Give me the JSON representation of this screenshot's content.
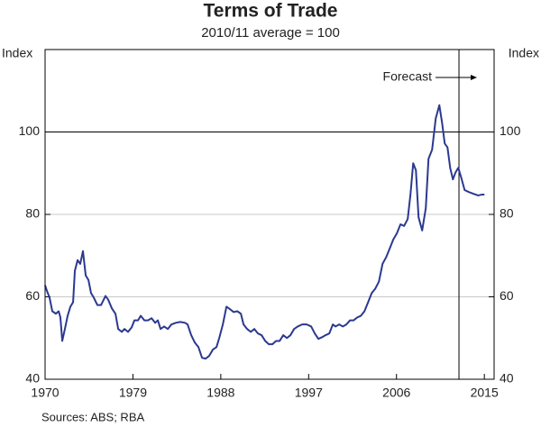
{
  "chart_data": {
    "type": "line",
    "title": "Terms of Trade",
    "subtitle": "2010/11 average = 100",
    "y_label": "Index",
    "y2_label": "Index",
    "source": "Sources: ABS; RBA",
    "annotation": "Forecast",
    "forecast_start": 2012.4,
    "hline": 100,
    "xlim": [
      1970,
      2016
    ],
    "xticks": [
      1970,
      1979,
      1988,
      1997,
      2006,
      2015
    ],
    "ylim": [
      40,
      120
    ],
    "yticks": [
      40,
      60,
      80,
      100
    ],
    "y2lim": [
      40,
      120
    ],
    "y2ticks": [
      40,
      60,
      80,
      100
    ],
    "grid": true,
    "series": [
      {
        "name": "Terms of Trade",
        "color": "#2b3990",
        "x": [
          1970.0,
          1970.18,
          1970.46,
          1970.74,
          1971.11,
          1971.39,
          1971.57,
          1971.76,
          1972.03,
          1972.31,
          1972.59,
          1972.87,
          1973.05,
          1973.33,
          1973.6,
          1973.88,
          1974.16,
          1974.44,
          1974.71,
          1974.99,
          1975.36,
          1975.73,
          1976.19,
          1976.47,
          1976.84,
          1977.21,
          1977.49,
          1977.86,
          1978.13,
          1978.5,
          1978.87,
          1979.15,
          1979.52,
          1979.8,
          1980.17,
          1980.54,
          1980.91,
          1981.28,
          1981.55,
          1981.83,
          1982.2,
          1982.57,
          1982.94,
          1983.4,
          1983.86,
          1984.33,
          1984.6,
          1984.97,
          1985.34,
          1985.71,
          1986.08,
          1986.45,
          1986.82,
          1987.19,
          1987.56,
          1987.84,
          1988.21,
          1988.58,
          1988.95,
          1989.32,
          1989.69,
          1990.06,
          1990.33,
          1990.7,
          1991.07,
          1991.44,
          1991.81,
          1992.18,
          1992.55,
          1992.92,
          1993.29,
          1993.66,
          1994.03,
          1994.4,
          1994.77,
          1995.14,
          1995.51,
          1995.88,
          1996.34,
          1996.8,
          1997.26,
          1997.63,
          1998.0,
          1998.37,
          1998.74,
          1999.11,
          1999.48,
          1999.76,
          2000.13,
          2000.5,
          2000.87,
          2001.24,
          2001.61,
          2001.98,
          2002.35,
          2002.72,
          2003.09,
          2003.46,
          2003.83,
          2004.2,
          2004.57,
          2004.94,
          2005.3,
          2005.67,
          2006.04,
          2006.41,
          2006.78,
          2007.15,
          2007.43,
          2007.71,
          2007.99,
          2008.26,
          2008.63,
          2009.0,
          2009.28,
          2009.65,
          2010.02,
          2010.39,
          2010.67,
          2010.94,
          2011.22,
          2011.5,
          2011.78,
          2012.05,
          2012.33,
          2012.61,
          2012.98,
          2013.44,
          2013.9,
          2014.36,
          2014.73,
          2015.01
        ],
        "values": [
          62.8,
          61.5,
          59.8,
          56.5,
          55.9,
          56.5,
          55,
          49.3,
          52.2,
          55.4,
          57.6,
          58.7,
          66.3,
          68.9,
          68,
          71.1,
          65.2,
          64.1,
          60.9,
          59.8,
          58,
          58,
          60.2,
          59.3,
          57.2,
          55.9,
          52.2,
          51.5,
          52.2,
          51.5,
          52.6,
          54.3,
          54.3,
          55.4,
          54.3,
          54.3,
          54.8,
          53.7,
          54.3,
          52.2,
          52.8,
          52.2,
          53.3,
          53.7,
          53.9,
          53.7,
          53.3,
          50.7,
          48.9,
          47.8,
          45.2,
          45,
          45.7,
          47.2,
          47.8,
          50,
          53.3,
          57.6,
          57,
          56.3,
          56.5,
          55.9,
          53.3,
          52.2,
          51.5,
          52.2,
          51.1,
          50.7,
          49.3,
          48.5,
          48.5,
          49.3,
          49.3,
          50.7,
          50,
          50.7,
          52.2,
          52.8,
          53.3,
          53.3,
          52.8,
          51.1,
          49.8,
          50.2,
          50.7,
          51.1,
          53.3,
          52.8,
          53.3,
          52.8,
          53.3,
          54.3,
          54.3,
          55,
          55.4,
          56.5,
          58.7,
          60.9,
          62,
          63.7,
          68,
          69.6,
          71.7,
          73.9,
          75.4,
          77.6,
          77.2,
          78.9,
          84.8,
          92.4,
          90.7,
          79.3,
          76.1,
          81.5,
          93.5,
          95.7,
          103.3,
          106.5,
          102.2,
          97.2,
          96.3,
          91.3,
          88.5,
          90.2,
          91.3,
          89.1,
          85.9,
          85.4,
          85,
          84.6,
          84.8,
          84.8
        ]
      }
    ]
  }
}
